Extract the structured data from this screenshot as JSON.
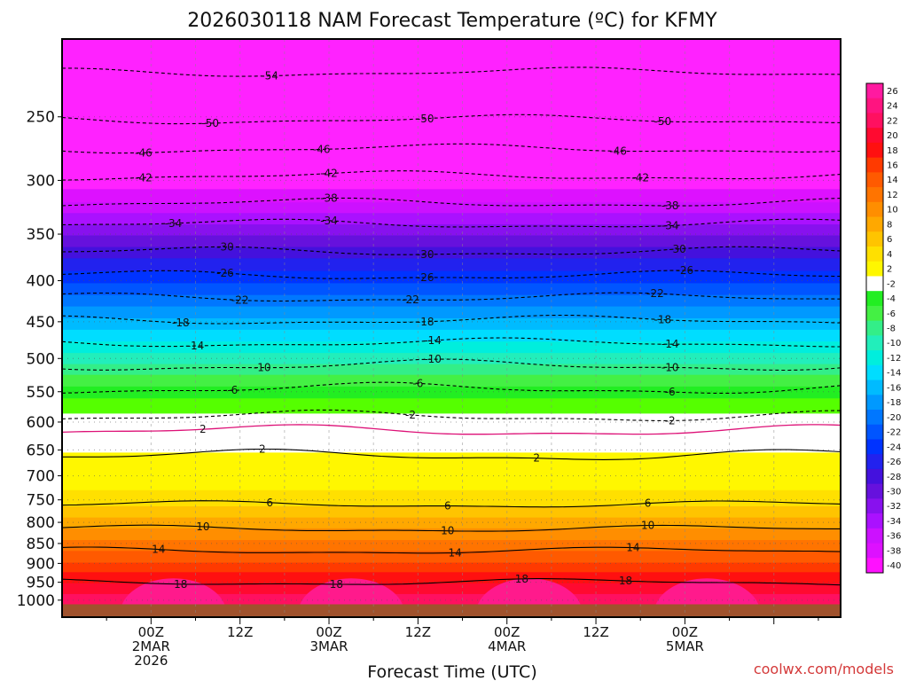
{
  "title": "2026030118 NAM Forecast Temperature (ºC) for KFMY",
  "credit": "coolwx.com/models",
  "chart_data": {
    "type": "heatmap",
    "title": "2026030118 NAM Forecast Temperature (ºC) for KFMY",
    "xlabel": "Forecast Time (UTC)",
    "ylabel": "",
    "y_scale": "log-pressure",
    "ylim": [
      1050,
      200
    ],
    "xlim_hours": [
      -12,
      93
    ],
    "y_ticks": [
      250,
      300,
      350,
      400,
      450,
      500,
      550,
      600,
      650,
      700,
      750,
      800,
      850,
      900,
      950,
      1000
    ],
    "x_ticks": [
      {
        "hour": 0,
        "line1": "00Z",
        "line2": "2MAR",
        "line3": "2026"
      },
      {
        "hour": 12,
        "line1": "12Z",
        "line2": "",
        "line3": ""
      },
      {
        "hour": 24,
        "line1": "00Z",
        "line2": "3MAR",
        "line3": ""
      },
      {
        "hour": 36,
        "line1": "12Z",
        "line2": "",
        "line3": ""
      },
      {
        "hour": 48,
        "line1": "00Z",
        "line2": "4MAR",
        "line3": ""
      },
      {
        "hour": 60,
        "line1": "12Z",
        "line2": "",
        "line3": ""
      },
      {
        "hour": 72,
        "line1": "00Z",
        "line2": "5MAR",
        "line3": ""
      }
    ],
    "grid": true,
    "surface_color": "#a0522d",
    "colorbar": {
      "placement": "right",
      "levels": [
        26,
        24,
        22,
        20,
        18,
        16,
        14,
        12,
        10,
        8,
        6,
        4,
        2,
        -2,
        -4,
        -6,
        -8,
        -10,
        -12,
        -14,
        -16,
        -18,
        -20,
        -22,
        -24,
        -26,
        -28,
        -30,
        -32,
        -34,
        -36,
        -38,
        -40
      ],
      "colors": [
        "#ff1aa0",
        "#ff1480",
        "#ff1060",
        "#ff0a30",
        "#ff1010",
        "#ff3a00",
        "#ff5a00",
        "#ff7400",
        "#ff8e00",
        "#ffa800",
        "#ffc400",
        "#ffe000",
        "#fff700",
        "#ffffff",
        "#22ee22",
        "#44f044",
        "#33ee88",
        "#22eebb",
        "#00eedd",
        "#00ddff",
        "#00bbff",
        "#0099ff",
        "#0077ff",
        "#0055ff",
        "#0033ff",
        "#2222ee",
        "#4411dd",
        "#6611dd",
        "#8811ee",
        "#aa11ff",
        "#cc11ff",
        "#dd11ff",
        "#ff11ff"
      ]
    },
    "color_bands": [
      {
        "temp": -56,
        "color": "#ff22ff",
        "top_p": 200,
        "bottom_p": 310
      },
      {
        "temp": -38,
        "color": "#dd11ff",
        "top_p": 310,
        "bottom_p": 322
      },
      {
        "temp": -36,
        "color": "#cc11ff",
        "top_p": 322,
        "bottom_p": 332
      },
      {
        "temp": -34,
        "color": "#aa11ff",
        "top_p": 332,
        "bottom_p": 343
      },
      {
        "temp": -32,
        "color": "#8811ee",
        "top_p": 343,
        "bottom_p": 354
      },
      {
        "temp": -30,
        "color": "#6611dd",
        "top_p": 354,
        "bottom_p": 366
      },
      {
        "temp": -28,
        "color": "#4411dd",
        "top_p": 366,
        "bottom_p": 378
      },
      {
        "temp": -26,
        "color": "#2222ee",
        "top_p": 378,
        "bottom_p": 392
      },
      {
        "temp": -24,
        "color": "#0033ff",
        "top_p": 392,
        "bottom_p": 406
      },
      {
        "temp": -22,
        "color": "#0055ff",
        "top_p": 406,
        "bottom_p": 420
      },
      {
        "temp": -20,
        "color": "#0077ff",
        "top_p": 420,
        "bottom_p": 434
      },
      {
        "temp": -18,
        "color": "#0099ff",
        "top_p": 434,
        "bottom_p": 449
      },
      {
        "temp": -16,
        "color": "#00bbff",
        "top_p": 449,
        "bottom_p": 464
      },
      {
        "temp": -14,
        "color": "#00ddff",
        "top_p": 464,
        "bottom_p": 480
      },
      {
        "temp": -12,
        "color": "#00eedd",
        "top_p": 480,
        "bottom_p": 496
      },
      {
        "temp": -10,
        "color": "#22eebb",
        "top_p": 496,
        "bottom_p": 512
      },
      {
        "temp": -8,
        "color": "#33ee88",
        "top_p": 512,
        "bottom_p": 528
      },
      {
        "temp": -6,
        "color": "#44f044",
        "top_p": 528,
        "bottom_p": 546
      },
      {
        "temp": -4,
        "color": "#22ee22",
        "top_p": 546,
        "bottom_p": 565
      },
      {
        "temp": -2,
        "color": "#55ff00",
        "top_p": 565,
        "bottom_p": 590
      },
      {
        "temp": 0,
        "color": "#ffffff",
        "top_p": 590,
        "bottom_p": 660
      },
      {
        "temp": 2,
        "color": "#fff700",
        "top_p": 660,
        "bottom_p": 735
      },
      {
        "temp": 4,
        "color": "#ffe000",
        "top_p": 735,
        "bottom_p": 770
      },
      {
        "temp": 6,
        "color": "#ffc400",
        "top_p": 770,
        "bottom_p": 795
      },
      {
        "temp": 8,
        "color": "#ffa800",
        "top_p": 795,
        "bottom_p": 820
      },
      {
        "temp": 10,
        "color": "#ff8e00",
        "top_p": 820,
        "bottom_p": 848
      },
      {
        "temp": 12,
        "color": "#ff7400",
        "top_p": 848,
        "bottom_p": 875
      },
      {
        "temp": 14,
        "color": "#ff5a00",
        "top_p": 875,
        "bottom_p": 905
      },
      {
        "temp": 16,
        "color": "#ff3a00",
        "top_p": 905,
        "bottom_p": 930
      },
      {
        "temp": 18,
        "color": "#ff1010",
        "top_p": 930,
        "bottom_p": 960
      },
      {
        "temp": 20,
        "color": "#ff0a30",
        "top_p": 960,
        "bottom_p": 990
      },
      {
        "temp": 22,
        "color": "#ff1060",
        "top_p": 990,
        "bottom_p": 1050
      }
    ],
    "warm_pulses_hours": [
      3,
      27,
      51,
      75
    ],
    "contours": [
      {
        "temp": -54,
        "dashed": true,
        "p": 220,
        "labels_hours": [
          16
        ]
      },
      {
        "temp": -50,
        "dashed": true,
        "p": 252,
        "labels_hours": [
          8,
          37,
          69
        ]
      },
      {
        "temp": -46,
        "dashed": true,
        "p": 274,
        "labels_hours": [
          -1,
          23,
          63
        ]
      },
      {
        "temp": -42,
        "dashed": true,
        "p": 296,
        "labels_hours": [
          -1,
          24,
          66
        ]
      },
      {
        "temp": -38,
        "dashed": true,
        "p": 320,
        "labels_hours": [
          24,
          70
        ]
      },
      {
        "temp": -34,
        "dashed": true,
        "p": 340,
        "labels_hours": [
          3,
          24,
          70
        ]
      },
      {
        "temp": -30,
        "dashed": true,
        "p": 368,
        "labels_hours": [
          10,
          37,
          71
        ]
      },
      {
        "temp": -26,
        "dashed": true,
        "p": 394,
        "labels_hours": [
          10,
          37,
          72
        ]
      },
      {
        "temp": -22,
        "dashed": true,
        "p": 420,
        "labels_hours": [
          12,
          35,
          68
        ]
      },
      {
        "temp": -18,
        "dashed": true,
        "p": 448,
        "labels_hours": [
          4,
          37,
          69
        ]
      },
      {
        "temp": -14,
        "dashed": true,
        "p": 478,
        "labels_hours": [
          6,
          38,
          70
        ]
      },
      {
        "temp": -10,
        "dashed": true,
        "p": 510,
        "labels_hours": [
          15,
          38,
          70
        ]
      },
      {
        "temp": -6,
        "dashed": true,
        "p": 545,
        "labels_hours": [
          11,
          36,
          70
        ]
      },
      {
        "temp": -2,
        "dashed": true,
        "p": 590,
        "labels_hours": [
          35,
          70
        ]
      },
      {
        "temp": 2,
        "dashed": false,
        "p": 660,
        "labels_hours": [
          15,
          52
        ]
      },
      {
        "temp": 6,
        "dashed": false,
        "p": 760,
        "labels_hours": [
          16,
          40,
          67
        ]
      },
      {
        "temp": 10,
        "dashed": false,
        "p": 815,
        "labels_hours": [
          7,
          40,
          67
        ]
      },
      {
        "temp": 14,
        "dashed": false,
        "p": 868,
        "labels_hours": [
          1,
          41,
          65
        ]
      },
      {
        "temp": 18,
        "dashed": false,
        "p": 950,
        "labels_hours": [
          4,
          25,
          50,
          64
        ]
      }
    ],
    "freezing_line": {
      "temp": 0,
      "color": "#dd1177",
      "p": 615,
      "label": "2",
      "label_hour": 7
    },
    "series": []
  }
}
